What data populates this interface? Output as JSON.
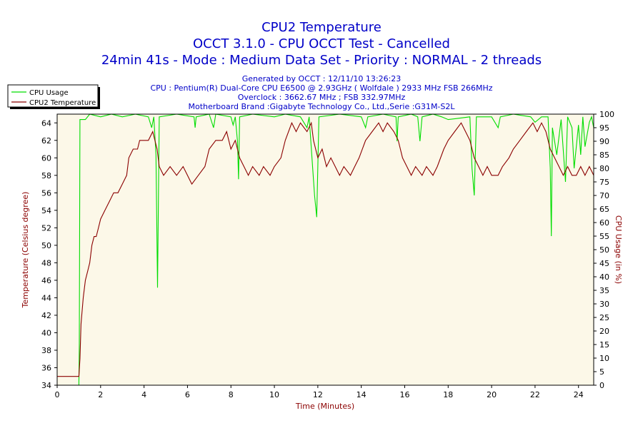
{
  "titles": {
    "line1": "CPU2 Temperature",
    "line2": "OCCT 3.1.0 - CPU OCCT Test - Cancelled",
    "line3": "24min 41s - Mode : Medium Data Set - Priority : NORMAL - 2 threads"
  },
  "info": {
    "generated": "Generated by OCCT : 12/11/10 13:26:23",
    "cpu": "CPU : Pentium(R) Dual-Core CPU E6500 @ 2.93GHz ( Wolfdale ) 2933 MHz FSB 266MHz",
    "overclock": "Overclock : 3662.67 MHz ; FSB 332.97MHz",
    "motherboard": "Motherboard Brand :Gigabyte Technology Co., Ltd.,Serie :G31M-S2L"
  },
  "colors": {
    "plot_background": "#fcf8e8",
    "cpu_usage": "#00dd00",
    "cpu_temperature": "#8b0000",
    "title_text": "#0000c8",
    "axis_title": "#8b0000"
  },
  "chart_data": {
    "type": "line",
    "xlabel": "Time (Minutes)",
    "ylabel_left": "Temperature (Celsius degree)",
    "ylabel_right": "CPU Usage (in %)",
    "xlim": [
      0,
      24.7
    ],
    "ylim_left": [
      34,
      65
    ],
    "ylim_right": [
      0,
      100
    ],
    "x_ticks": [
      0,
      2,
      4,
      6,
      8,
      10,
      12,
      14,
      16,
      18,
      20,
      22,
      24
    ],
    "y_left_ticks": [
      34,
      36,
      38,
      40,
      42,
      44,
      46,
      48,
      50,
      52,
      54,
      56,
      58,
      60,
      62,
      64
    ],
    "y_right_ticks": [
      0,
      5,
      10,
      15,
      20,
      25,
      30,
      35,
      40,
      45,
      50,
      55,
      60,
      65,
      70,
      75,
      80,
      85,
      90,
      95,
      100
    ],
    "grid": false,
    "legend_position": "top-left",
    "series": [
      {
        "name": "CPU Usage",
        "axis": "right",
        "points": [
          [
            0,
            0
          ],
          [
            1.0,
            0
          ],
          [
            1.02,
            15
          ],
          [
            1.05,
            98
          ],
          [
            1.3,
            98
          ],
          [
            1.5,
            100
          ],
          [
            2,
            99
          ],
          [
            2.5,
            100
          ],
          [
            3,
            99
          ],
          [
            3.6,
            100
          ],
          [
            4.2,
            99
          ],
          [
            4.35,
            95
          ],
          [
            4.45,
            99
          ],
          [
            4.55,
            85
          ],
          [
            4.62,
            36
          ],
          [
            4.7,
            99
          ],
          [
            5.5,
            100
          ],
          [
            6.3,
            99
          ],
          [
            6.35,
            95
          ],
          [
            6.4,
            99
          ],
          [
            7.0,
            100
          ],
          [
            7.2,
            95
          ],
          [
            7.3,
            100
          ],
          [
            8.0,
            99
          ],
          [
            8.1,
            96
          ],
          [
            8.2,
            99
          ],
          [
            8.3,
            90
          ],
          [
            8.35,
            76
          ],
          [
            8.4,
            99
          ],
          [
            9,
            100
          ],
          [
            10,
            99
          ],
          [
            10.5,
            100
          ],
          [
            11.2,
            99
          ],
          [
            11.5,
            95
          ],
          [
            11.6,
            99
          ],
          [
            11.85,
            70
          ],
          [
            11.95,
            62
          ],
          [
            12.05,
            99
          ],
          [
            13,
            100
          ],
          [
            14,
            99
          ],
          [
            14.2,
            95
          ],
          [
            14.3,
            99
          ],
          [
            15,
            100
          ],
          [
            15.6,
            99
          ],
          [
            15.65,
            90
          ],
          [
            15.7,
            99
          ],
          [
            16.3,
            100
          ],
          [
            16.6,
            99
          ],
          [
            16.7,
            90
          ],
          [
            16.8,
            99
          ],
          [
            17.3,
            100
          ],
          [
            17.7,
            99
          ],
          [
            18.0,
            98
          ],
          [
            19.0,
            99
          ],
          [
            19.1,
            80
          ],
          [
            19.2,
            70
          ],
          [
            19.3,
            99
          ],
          [
            20.0,
            99
          ],
          [
            20.3,
            95
          ],
          [
            20.4,
            99
          ],
          [
            21.0,
            100
          ],
          [
            21.8,
            99
          ],
          [
            22.0,
            97
          ],
          [
            22.3,
            99
          ],
          [
            22.6,
            99
          ],
          [
            22.7,
            80
          ],
          [
            22.75,
            55
          ],
          [
            22.8,
            95
          ],
          [
            23.0,
            85
          ],
          [
            23.2,
            98
          ],
          [
            23.4,
            75
          ],
          [
            23.5,
            99
          ],
          [
            23.7,
            95
          ],
          [
            23.8,
            80
          ],
          [
            24.0,
            96
          ],
          [
            24.1,
            85
          ],
          [
            24.2,
            99
          ],
          [
            24.3,
            88
          ],
          [
            24.5,
            97
          ],
          [
            24.6,
            99
          ],
          [
            24.7,
            95
          ]
        ]
      },
      {
        "name": "CPU2 Temperature",
        "axis": "left",
        "points": [
          [
            0,
            35
          ],
          [
            0.5,
            35
          ],
          [
            1.0,
            35
          ],
          [
            1.05,
            37
          ],
          [
            1.1,
            41
          ],
          [
            1.2,
            44
          ],
          [
            1.3,
            46
          ],
          [
            1.4,
            47
          ],
          [
            1.5,
            48
          ],
          [
            1.6,
            50
          ],
          [
            1.7,
            51
          ],
          [
            1.8,
            51
          ],
          [
            1.9,
            52
          ],
          [
            2.0,
            53
          ],
          [
            2.2,
            54
          ],
          [
            2.4,
            55
          ],
          [
            2.6,
            56
          ],
          [
            2.8,
            56
          ],
          [
            3.0,
            57
          ],
          [
            3.2,
            58
          ],
          [
            3.3,
            60
          ],
          [
            3.5,
            61
          ],
          [
            3.7,
            61
          ],
          [
            3.8,
            62
          ],
          [
            4.0,
            62
          ],
          [
            4.2,
            62
          ],
          [
            4.4,
            63
          ],
          [
            4.5,
            62
          ],
          [
            4.6,
            61
          ],
          [
            4.7,
            59
          ],
          [
            4.9,
            58
          ],
          [
            5.2,
            59
          ],
          [
            5.5,
            58
          ],
          [
            5.8,
            59
          ],
          [
            6.0,
            58
          ],
          [
            6.2,
            57
          ],
          [
            6.5,
            58
          ],
          [
            6.8,
            59
          ],
          [
            7.0,
            61
          ],
          [
            7.3,
            62
          ],
          [
            7.6,
            62
          ],
          [
            7.8,
            63
          ],
          [
            8.0,
            61
          ],
          [
            8.2,
            62
          ],
          [
            8.4,
            60
          ],
          [
            8.6,
            59
          ],
          [
            8.8,
            58
          ],
          [
            9.0,
            59
          ],
          [
            9.3,
            58
          ],
          [
            9.5,
            59
          ],
          [
            9.8,
            58
          ],
          [
            10.0,
            59
          ],
          [
            10.3,
            60
          ],
          [
            10.5,
            62
          ],
          [
            10.8,
            64
          ],
          [
            11.0,
            63
          ],
          [
            11.2,
            64
          ],
          [
            11.5,
            63
          ],
          [
            11.7,
            64
          ],
          [
            11.8,
            62
          ],
          [
            11.9,
            61
          ],
          [
            12.0,
            60
          ],
          [
            12.2,
            61
          ],
          [
            12.4,
            59
          ],
          [
            12.6,
            60
          ],
          [
            12.8,
            59
          ],
          [
            13.0,
            58
          ],
          [
            13.2,
            59
          ],
          [
            13.5,
            58
          ],
          [
            13.7,
            59
          ],
          [
            13.9,
            60
          ],
          [
            14.2,
            62
          ],
          [
            14.5,
            63
          ],
          [
            14.8,
            64
          ],
          [
            15.0,
            63
          ],
          [
            15.2,
            64
          ],
          [
            15.5,
            63
          ],
          [
            15.7,
            62
          ],
          [
            15.9,
            60
          ],
          [
            16.1,
            59
          ],
          [
            16.3,
            58
          ],
          [
            16.5,
            59
          ],
          [
            16.8,
            58
          ],
          [
            17.0,
            59
          ],
          [
            17.3,
            58
          ],
          [
            17.5,
            59
          ],
          [
            17.8,
            61
          ],
          [
            18.0,
            62
          ],
          [
            18.3,
            63
          ],
          [
            18.6,
            64
          ],
          [
            18.8,
            63
          ],
          [
            19.0,
            62
          ],
          [
            19.2,
            60
          ],
          [
            19.4,
            59
          ],
          [
            19.6,
            58
          ],
          [
            19.8,
            59
          ],
          [
            20.0,
            58
          ],
          [
            20.3,
            58
          ],
          [
            20.5,
            59
          ],
          [
            20.8,
            60
          ],
          [
            21.0,
            61
          ],
          [
            21.3,
            62
          ],
          [
            21.6,
            63
          ],
          [
            21.9,
            64
          ],
          [
            22.1,
            63
          ],
          [
            22.3,
            64
          ],
          [
            22.5,
            63
          ],
          [
            22.7,
            61
          ],
          [
            22.9,
            60
          ],
          [
            23.1,
            59
          ],
          [
            23.3,
            58
          ],
          [
            23.5,
            59
          ],
          [
            23.7,
            58
          ],
          [
            23.9,
            58
          ],
          [
            24.1,
            59
          ],
          [
            24.3,
            58
          ],
          [
            24.5,
            59
          ],
          [
            24.7,
            58
          ]
        ]
      }
    ]
  }
}
